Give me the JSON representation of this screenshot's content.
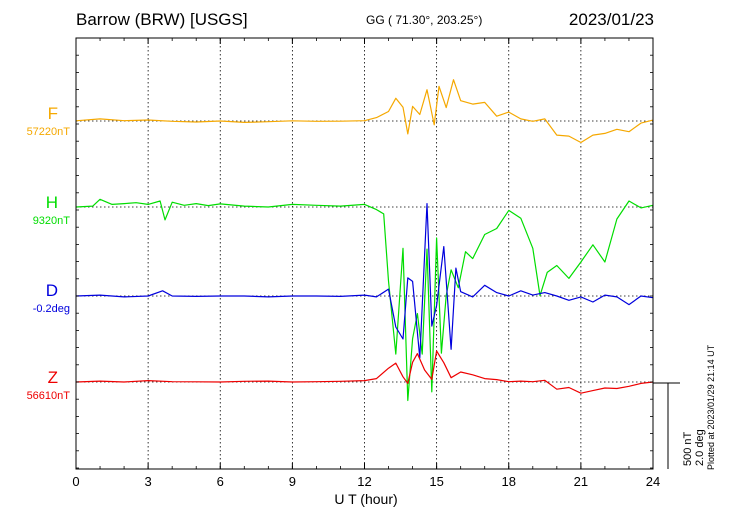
{
  "header": {
    "station": "Barrow (BRW)  [USGS]",
    "coords": "GG ( 71.30°, 203.25°)",
    "date": "2023/01/23"
  },
  "footer": {
    "xlabel": "U T (hour)",
    "scale_nt": "500 nT",
    "scale_deg": "2.0 deg",
    "plotted": "Plotted at 2023/01/29 21:14 UT"
  },
  "chart_data": {
    "type": "line",
    "xlabel": "U T (hour)",
    "xlim": [
      0,
      24
    ],
    "xticks": [
      0,
      3,
      6,
      9,
      12,
      15,
      18,
      21,
      24
    ],
    "grid": true,
    "scale": {
      "nT_per_bar": 500,
      "deg_per_bar": 2.0
    },
    "channels": [
      {
        "name": "F",
        "baseline_label": "57220nT",
        "baseline": 57220,
        "unit": "nT",
        "color": "#f5a800",
        "x": [
          0,
          1,
          2,
          3,
          4,
          5,
          6,
          7,
          8,
          9,
          10,
          11,
          12,
          12.5,
          13,
          13.3,
          13.6,
          13.8,
          14,
          14.3,
          14.6,
          14.9,
          15.1,
          15.4,
          15.7,
          16,
          16.5,
          17,
          17.5,
          18,
          18.5,
          19,
          19.5,
          20,
          20.5,
          21,
          21.5,
          22,
          22.5,
          23,
          23.5,
          24
        ],
        "values": [
          57221,
          57232,
          57222,
          57226,
          57218,
          57214,
          57220,
          57212,
          57216,
          57221,
          57218,
          57219,
          57222,
          57240,
          57275,
          57352,
          57300,
          57145,
          57305,
          57258,
          57402,
          57198,
          57422,
          57298,
          57460,
          57338,
          57318,
          57328,
          57248,
          57272,
          57232,
          57218,
          57232,
          57138,
          57132,
          57095,
          57138,
          57148,
          57172,
          57158,
          57208,
          57225
        ]
      },
      {
        "name": "H",
        "baseline_label": "9320nT",
        "baseline": 9320,
        "unit": "nT",
        "color": "#00dd00",
        "x": [
          0,
          0.7,
          1,
          1.5,
          2,
          2.5,
          3,
          3.5,
          3.7,
          4,
          4.5,
          5,
          5.5,
          6,
          7,
          8,
          9,
          10,
          11,
          12,
          12.5,
          12.8,
          13,
          13.3,
          13.6,
          13.8,
          14,
          14.2,
          14.4,
          14.6,
          14.8,
          15,
          15.2,
          15.4,
          15.6,
          15.9,
          16.2,
          16.5,
          17,
          17.5,
          18,
          18.5,
          19,
          19.3,
          19.6,
          20,
          20.5,
          21,
          21.5,
          22,
          22.5,
          23,
          23.5,
          24
        ],
        "values": [
          9320,
          9325,
          9365,
          9335,
          9340,
          9345,
          9335,
          9355,
          9245,
          9348,
          9330,
          9340,
          9328,
          9338,
          9325,
          9320,
          9335,
          9330,
          9325,
          9335,
          9305,
          9280,
          8890,
          8465,
          9080,
          8195,
          8555,
          8700,
          8465,
          9075,
          8245,
          9140,
          8470,
          8805,
          8955,
          8850,
          9060,
          9020,
          9160,
          9195,
          9300,
          9255,
          9080,
          8805,
          8940,
          8980,
          8905,
          9000,
          9100,
          9000,
          9250,
          9355,
          9315,
          9330
        ]
      },
      {
        "name": "D",
        "baseline_label": "-0.2deg",
        "baseline": -0.2,
        "unit": "deg",
        "color": "#0000dd",
        "x": [
          0,
          1,
          2,
          3,
          3.6,
          4,
          5,
          6,
          7,
          8,
          9,
          10,
          11,
          12,
          12.5,
          13,
          13.3,
          13.6,
          13.8,
          14,
          14.3,
          14.6,
          14.8,
          15,
          15.3,
          15.6,
          15.8,
          16,
          16.5,
          17,
          17.5,
          18,
          18.5,
          19,
          19.5,
          20,
          20.5,
          21,
          21.5,
          22,
          22.5,
          23,
          23.5,
          24
        ],
        "values": [
          -0.2,
          -0.18,
          -0.22,
          -0.2,
          -0.08,
          -0.2,
          -0.21,
          -0.2,
          -0.2,
          -0.22,
          -0.2,
          -0.2,
          -0.21,
          -0.18,
          -0.22,
          -0.04,
          -0.92,
          -1.2,
          0.22,
          0.14,
          -1.64,
          1.95,
          -0.9,
          -0.42,
          0.95,
          -1.44,
          0.45,
          -0.1,
          -0.22,
          0.05,
          -0.12,
          -0.2,
          -0.08,
          -0.18,
          -0.12,
          -0.2,
          -0.3,
          -0.22,
          -0.34,
          -0.18,
          -0.22,
          -0.4,
          -0.2,
          -0.24
        ]
      },
      {
        "name": "Z",
        "baseline_label": "56610nT",
        "baseline": 56610,
        "unit": "nT",
        "color": "#ee0000",
        "x": [
          0,
          1,
          2,
          3,
          4,
          5,
          6,
          7,
          8,
          9,
          10,
          11,
          12,
          12.5,
          13,
          13.3,
          13.6,
          13.8,
          14,
          14.2,
          14.5,
          14.8,
          15,
          15.3,
          15.6,
          16,
          16.5,
          17,
          17.5,
          18,
          18.5,
          19,
          19.5,
          20,
          20.5,
          21,
          21.5,
          22,
          22.5,
          23,
          23.5,
          24
        ],
        "values": [
          56610,
          56615,
          56610,
          56618,
          56612,
          56611,
          56610,
          56614,
          56615,
          56610,
          56612,
          56614,
          56618,
          56630,
          56690,
          56720,
          56640,
          56602,
          56725,
          56775,
          56680,
          56625,
          56790,
          56722,
          56635,
          56668,
          56652,
          56630,
          56624,
          56612,
          56615,
          56612,
          56620,
          56568,
          56578,
          56545,
          56560,
          56575,
          56572,
          56585,
          56602,
          56610
        ]
      }
    ]
  }
}
